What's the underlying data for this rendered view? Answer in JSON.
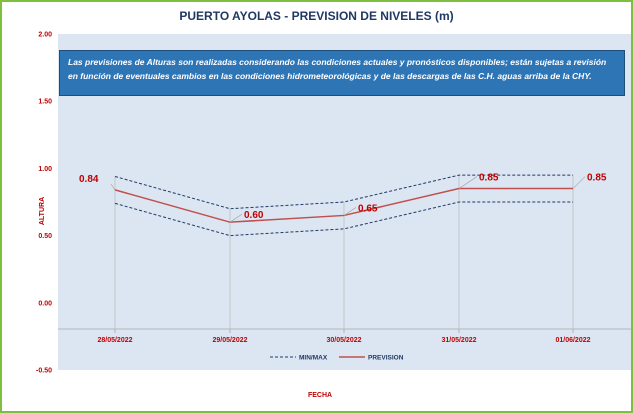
{
  "chart_data": {
    "type": "line",
    "title": "PUERTO AYOLAS - PREVISION DE NIVELES (m)",
    "note": "Las previsiones de Alturas son realizadas considerando las condiciones actuales y pronósticos disponibles;  están sujetas a revisión en función de eventuales cambios en las condiciones hidrometeorológicas y de las descargas de las C.H. aguas arriba de la CHY.",
    "xlabel": "FECHA",
    "ylabel": "ALTURA",
    "ylim": [
      -0.5,
      2.0
    ],
    "yticks": [
      "2.00",
      "1.50",
      "1.00",
      "0.50",
      "0.00",
      "-0.50"
    ],
    "categories": [
      "28/05/2022",
      "29/05/2022",
      "30/05/2022",
      "31/05/2022",
      "01/06/2022"
    ],
    "series": [
      {
        "name": "PREVISION",
        "values": [
          0.84,
          0.6,
          0.65,
          0.85,
          0.85
        ],
        "labels": [
          "0.84",
          "0.60",
          "0.65",
          "0.85",
          "0.85"
        ],
        "color": "#c0504d"
      },
      {
        "name": "MIN/MAX",
        "upper": [
          0.94,
          0.7,
          0.75,
          0.95,
          0.95
        ],
        "lower": [
          0.74,
          0.5,
          0.55,
          0.75,
          0.75
        ],
        "color": "#1f3864",
        "dash": true
      }
    ],
    "legend": "bottom",
    "grid": false
  }
}
